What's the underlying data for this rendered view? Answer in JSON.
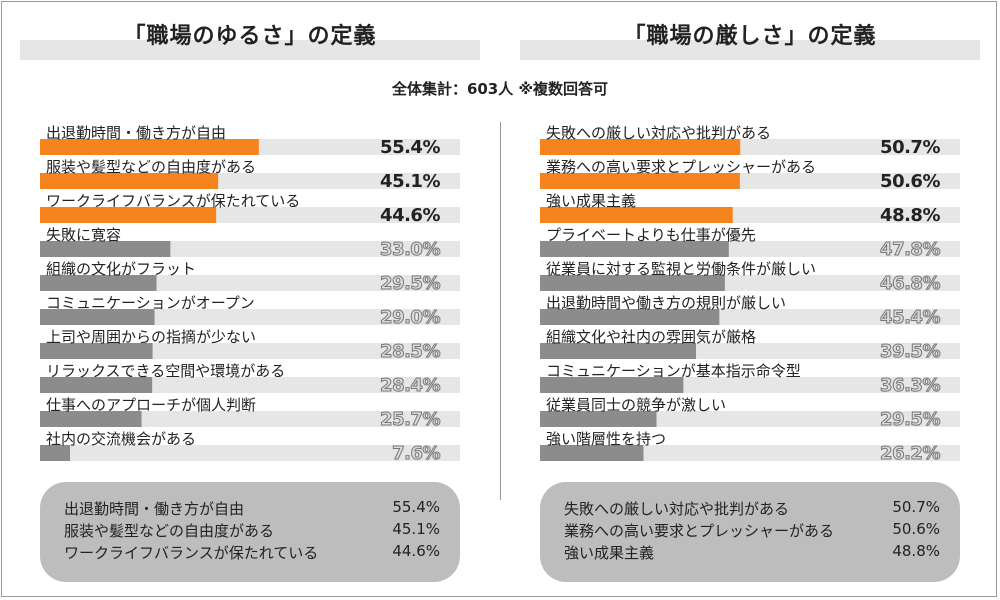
{
  "subtitle": "全体集計：603人 ※複数回答可",
  "chart_data": [
    {
      "type": "bar",
      "orientation": "horizontal",
      "title": "「職場のゆるさ」の定義",
      "xlim": [
        0,
        100
      ],
      "highlight_top": 3,
      "categories": [
        "出退勤時間・働き方が自由",
        "服装や髪型などの自由度がある",
        "ワークライフバランスが保たれている",
        "失敗に寛容",
        "組織の文化がフラット",
        "コミュニケーションがオープン",
        "上司や周囲からの指摘が少ない",
        "リラックスできる空間や環境がある",
        "仕事へのアプローチが個人判断",
        "社内の交流機会がある"
      ],
      "values": [
        55.4,
        45.1,
        44.6,
        33.0,
        29.5,
        29.0,
        28.5,
        28.4,
        25.7,
        7.6
      ],
      "value_labels": [
        "55.4%",
        "45.1%",
        "44.6%",
        "33.0%",
        "29.5%",
        "29.0%",
        "28.5%",
        "28.4%",
        "25.7%",
        "7.6%"
      ]
    },
    {
      "type": "bar",
      "orientation": "horizontal",
      "title": "「職場の厳しさ」の定義",
      "xlim": [
        0,
        100
      ],
      "highlight_top": 3,
      "categories": [
        "失敗への厳しい対応や批判がある",
        "業務への高い要求とプレッシャーがある",
        "強い成果主義",
        "プライベートよりも仕事が優先",
        "従業員に対する監視と労働条件が厳しい",
        "出退勤時間や働き方の規則が厳しい",
        "組織文化や社内の雰囲気が厳格",
        "コミュニケーションが基本指示命令型",
        "従業員同士の競争が激しい",
        "強い階層性を持つ"
      ],
      "values": [
        50.7,
        50.6,
        48.8,
        47.8,
        46.8,
        45.4,
        39.5,
        36.3,
        29.5,
        26.2
      ],
      "value_labels": [
        "50.7%",
        "50.6%",
        "48.8%",
        "47.8%",
        "46.8%",
        "45.4%",
        "39.5%",
        "36.3%",
        "29.5%",
        "26.2%"
      ]
    }
  ],
  "summaries": [
    {
      "rows": [
        {
          "label": "出退勤時間・働き方が自由",
          "value": "55.4%"
        },
        {
          "label": "服装や髪型などの自由度がある",
          "value": "45.1%"
        },
        {
          "label": "ワークライフバランスが保たれている",
          "value": "44.6%"
        }
      ]
    },
    {
      "rows": [
        {
          "label": "失敗への厳しい対応や批判がある",
          "value": "50.7%"
        },
        {
          "label": "業務への高い要求とプレッシャーがある",
          "value": "50.6%"
        },
        {
          "label": "強い成果主義",
          "value": "48.8%"
        }
      ]
    }
  ],
  "colors": {
    "highlight_bar": "#f5841f",
    "normal_bar": "#8c8c8c",
    "track": "#e6e6e6",
    "highlight_value": "#222222",
    "normal_value": "#dddddd",
    "value_stroke": "#777777"
  }
}
